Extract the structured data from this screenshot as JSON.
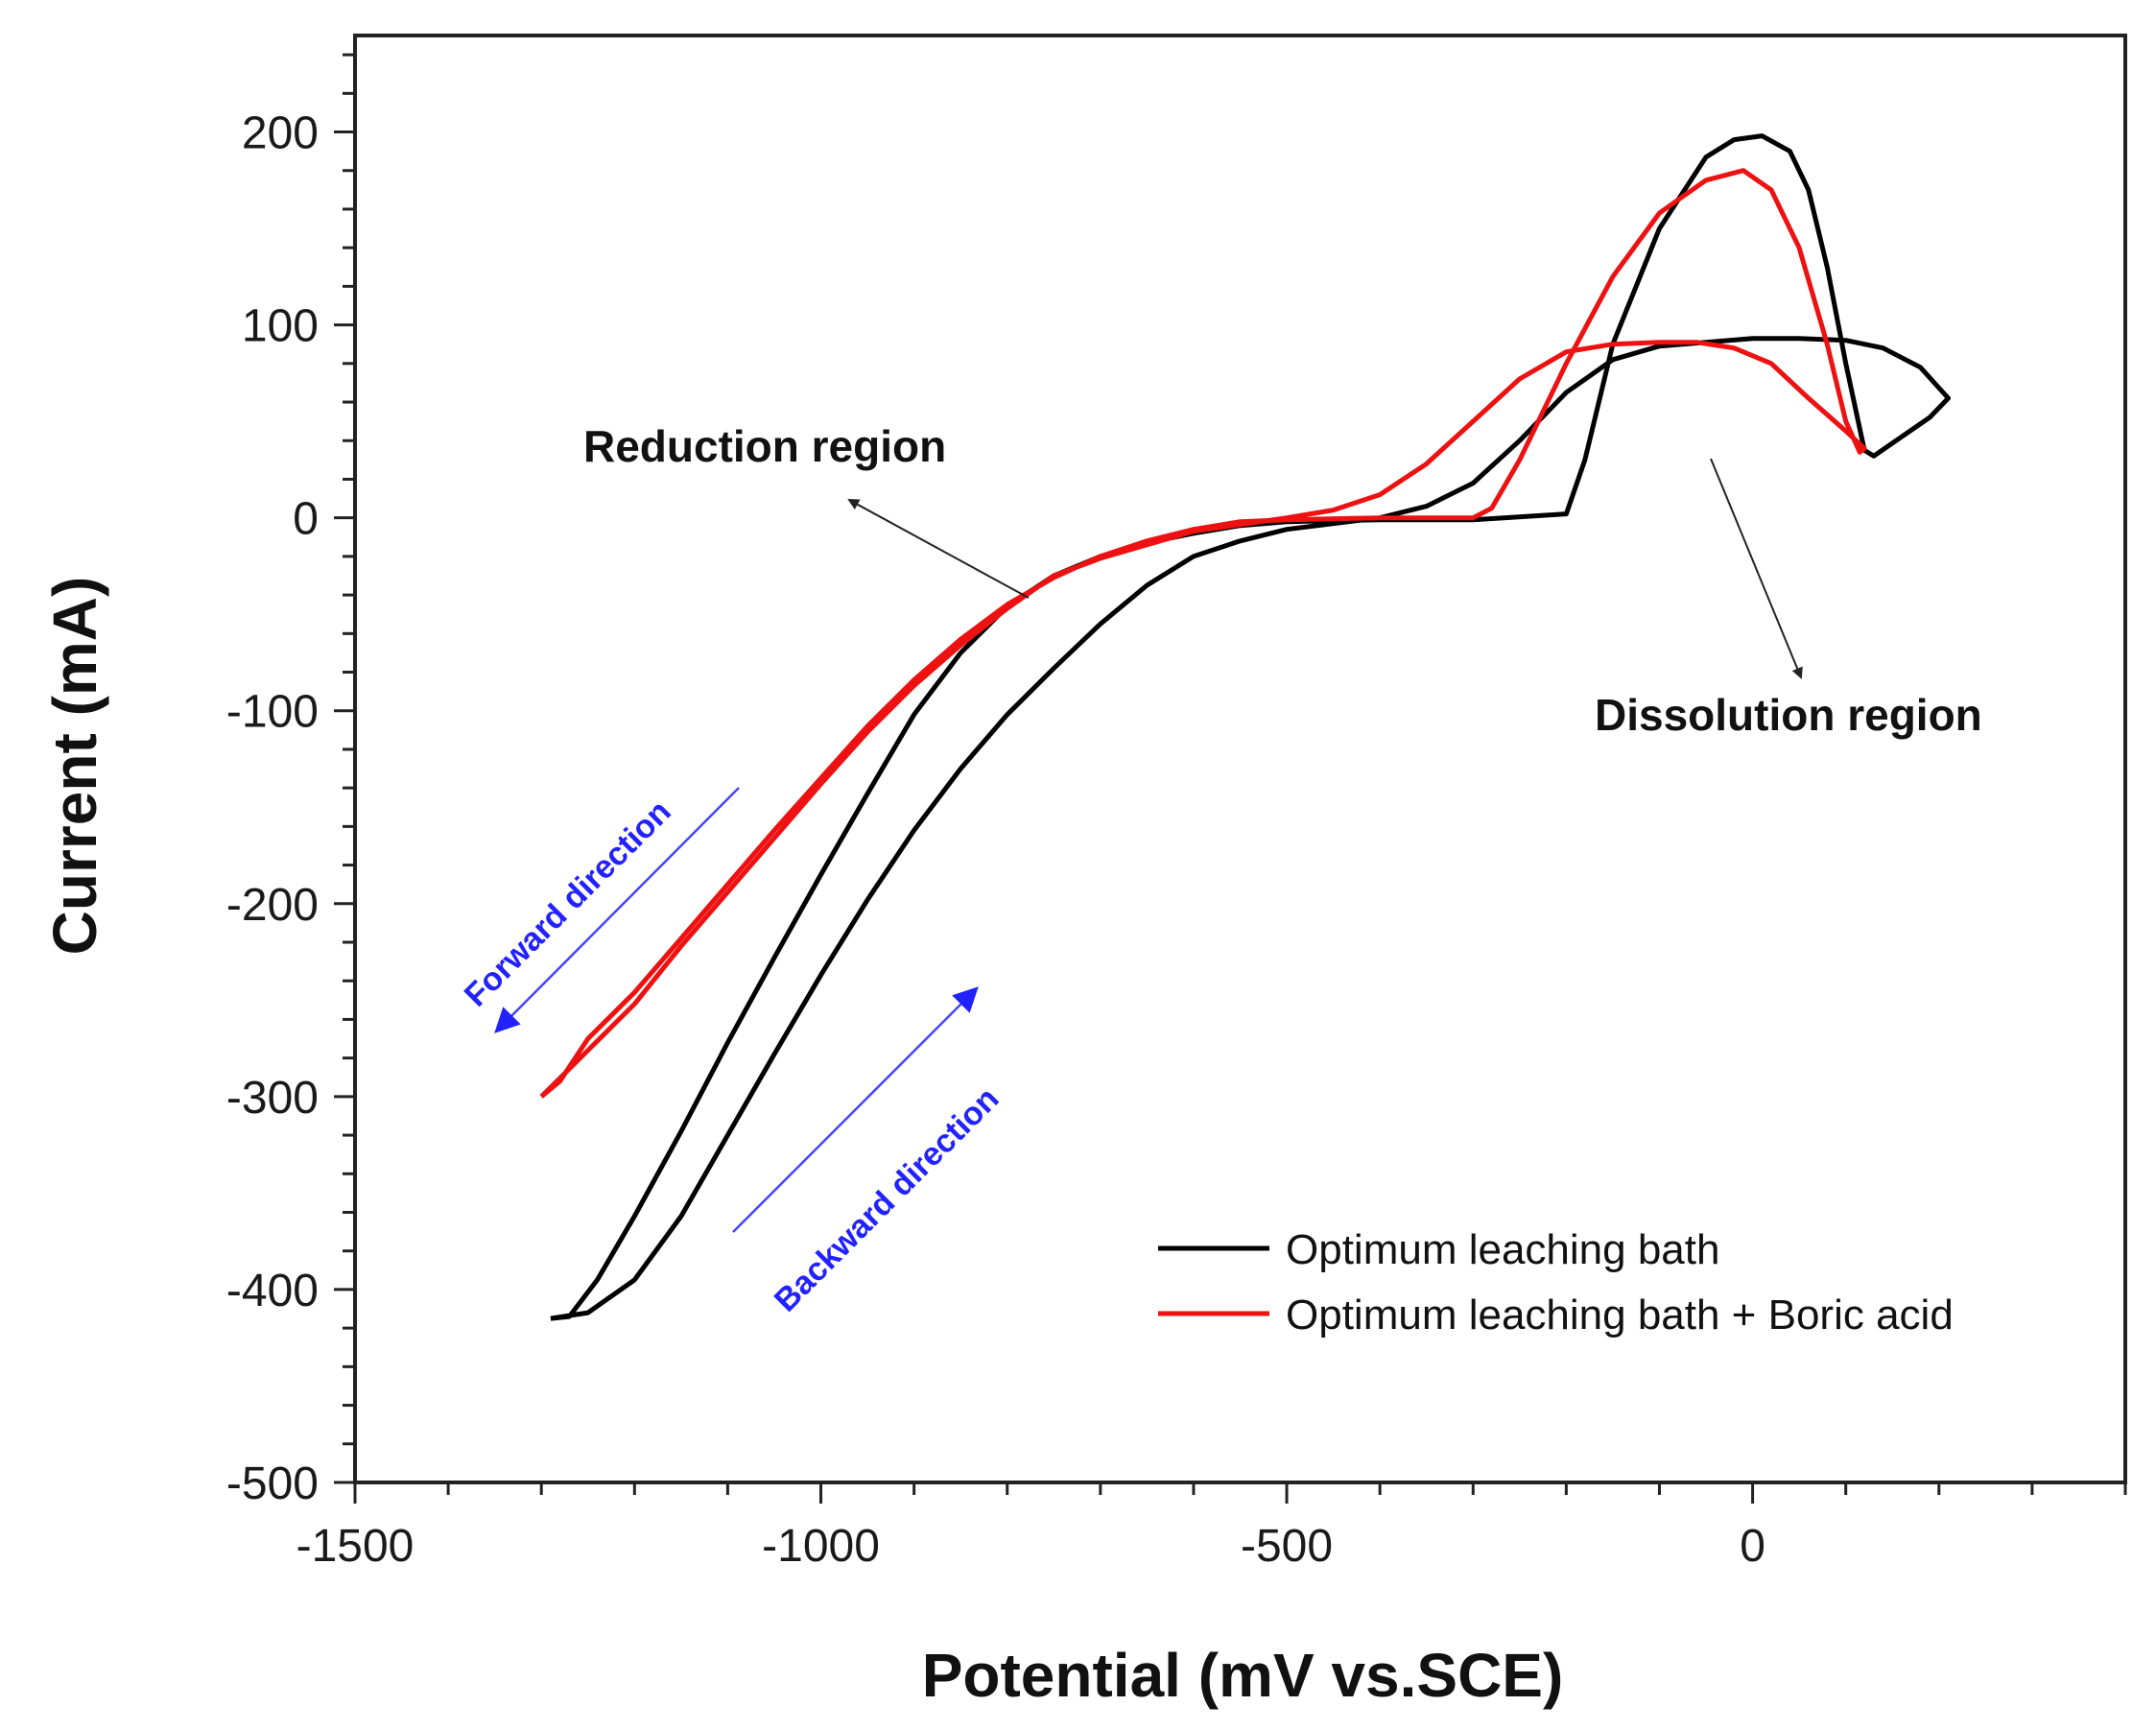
{
  "chart_data": {
    "type": "line",
    "xlabel": "Potential (mV vs.SCE)",
    "ylabel": "Current (mA)",
    "xlim": [
      -1500,
      400
    ],
    "ylim": [
      -500,
      250
    ],
    "xticks": [
      -1500,
      -1000,
      -500,
      0
    ],
    "yticks": [
      -500,
      -400,
      -300,
      -200,
      -100,
      0,
      100,
      200
    ],
    "x_minor_step": 100,
    "y_minor_step": 20,
    "grid": false,
    "legend_position": "bottom-right",
    "series": [
      {
        "name": "Optimum leaching bath",
        "color": "#000000",
        "points": [
          [
            -1290,
            -415
          ],
          [
            -1270,
            -414
          ],
          [
            -1240,
            -395
          ],
          [
            -1200,
            -362
          ],
          [
            -1150,
            -318
          ],
          [
            -1100,
            -272
          ],
          [
            -1050,
            -228
          ],
          [
            -1000,
            -185
          ],
          [
            -950,
            -143
          ],
          [
            -900,
            -102
          ],
          [
            -850,
            -70
          ],
          [
            -800,
            -46
          ],
          [
            -750,
            -30
          ],
          [
            -700,
            -20
          ],
          [
            -650,
            -13
          ],
          [
            -600,
            -8
          ],
          [
            -550,
            -4
          ],
          [
            -500,
            -2
          ],
          [
            -400,
            -1
          ],
          [
            -300,
            -1
          ],
          [
            -200,
            2
          ],
          [
            -180,
            30
          ],
          [
            -150,
            90
          ],
          [
            -100,
            150
          ],
          [
            -50,
            187
          ],
          [
            -20,
            196
          ],
          [
            10,
            198
          ],
          [
            40,
            190
          ],
          [
            60,
            170
          ],
          [
            80,
            130
          ],
          [
            100,
            80
          ],
          [
            120,
            35
          ],
          [
            130,
            32
          ],
          [
            160,
            42
          ],
          [
            190,
            52
          ],
          [
            210,
            62
          ],
          [
            180,
            78
          ],
          [
            140,
            88
          ],
          [
            100,
            92
          ],
          [
            50,
            93
          ],
          [
            0,
            93
          ],
          [
            -50,
            91
          ],
          [
            -100,
            89
          ],
          [
            -150,
            82
          ],
          [
            -200,
            65
          ],
          [
            -250,
            40
          ],
          [
            -300,
            18
          ],
          [
            -350,
            6
          ],
          [
            -400,
            0
          ],
          [
            -500,
            -6
          ],
          [
            -550,
            -12
          ],
          [
            -600,
            -20
          ],
          [
            -650,
            -35
          ],
          [
            -700,
            -55
          ],
          [
            -750,
            -78
          ],
          [
            -800,
            -102
          ],
          [
            -850,
            -130
          ],
          [
            -900,
            -162
          ],
          [
            -950,
            -198
          ],
          [
            -1000,
            -237
          ],
          [
            -1050,
            -278
          ],
          [
            -1100,
            -320
          ],
          [
            -1150,
            -362
          ],
          [
            -1200,
            -395
          ],
          [
            -1250,
            -412
          ],
          [
            -1290,
            -415
          ]
        ]
      },
      {
        "name": "Optimum leaching bath + Boric acid",
        "color": "#ee1111",
        "points": [
          [
            -1300,
            -300
          ],
          [
            -1280,
            -292
          ],
          [
            -1250,
            -270
          ],
          [
            -1200,
            -246
          ],
          [
            -1150,
            -218
          ],
          [
            -1100,
            -190
          ],
          [
            -1050,
            -162
          ],
          [
            -1000,
            -135
          ],
          [
            -950,
            -108
          ],
          [
            -900,
            -84
          ],
          [
            -850,
            -63
          ],
          [
            -800,
            -45
          ],
          [
            -750,
            -31
          ],
          [
            -700,
            -20
          ],
          [
            -650,
            -12
          ],
          [
            -600,
            -6
          ],
          [
            -550,
            -2
          ],
          [
            -500,
            -1
          ],
          [
            -400,
            0
          ],
          [
            -300,
            0
          ],
          [
            -280,
            5
          ],
          [
            -250,
            30
          ],
          [
            -200,
            80
          ],
          [
            -150,
            125
          ],
          [
            -100,
            158
          ],
          [
            -50,
            175
          ],
          [
            -10,
            180
          ],
          [
            20,
            170
          ],
          [
            50,
            140
          ],
          [
            80,
            90
          ],
          [
            100,
            50
          ],
          [
            115,
            34
          ],
          [
            120,
            36
          ],
          [
            100,
            45
          ],
          [
            60,
            62
          ],
          [
            20,
            80
          ],
          [
            -20,
            88
          ],
          [
            -60,
            91
          ],
          [
            -100,
            91
          ],
          [
            -150,
            90
          ],
          [
            -200,
            86
          ],
          [
            -250,
            72
          ],
          [
            -300,
            50
          ],
          [
            -350,
            28
          ],
          [
            -400,
            12
          ],
          [
            -450,
            4
          ],
          [
            -500,
            0
          ],
          [
            -600,
            -7
          ],
          [
            -700,
            -21
          ],
          [
            -750,
            -30
          ],
          [
            -800,
            -47
          ],
          [
            -850,
            -66
          ],
          [
            -900,
            -87
          ],
          [
            -950,
            -111
          ],
          [
            -1000,
            -138
          ],
          [
            -1050,
            -166
          ],
          [
            -1100,
            -194
          ],
          [
            -1150,
            -222
          ],
          [
            -1200,
            -252
          ],
          [
            -1250,
            -276
          ],
          [
            -1300,
            -300
          ]
        ]
      }
    ],
    "annotations": [
      {
        "text": "Reduction region",
        "color": "#111111"
      },
      {
        "text": "Dissolution region",
        "color": "#111111"
      },
      {
        "text": "Forward direction",
        "color": "#2222ff"
      },
      {
        "text": "Backward direction",
        "color": "#2222ff"
      }
    ]
  }
}
